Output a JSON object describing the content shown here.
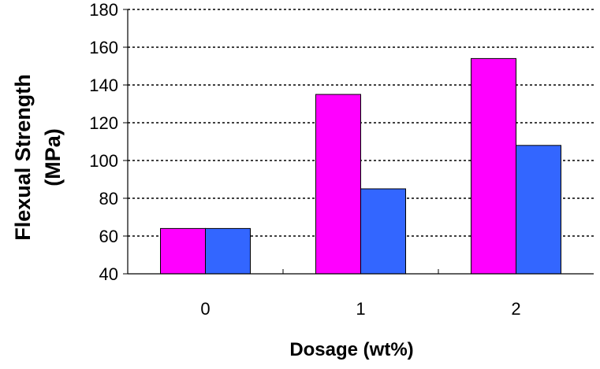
{
  "chart_data": {
    "type": "bar",
    "categories": [
      "0",
      "1",
      "2"
    ],
    "series": [
      {
        "color": "#ff00ff",
        "values": [
          64,
          135,
          154
        ]
      },
      {
        "color": "#3366ff",
        "values": [
          64,
          85,
          108
        ]
      }
    ],
    "title": "",
    "xlabel": "Dosage (wt%)",
    "ylabel_line1": "Flexual Strength",
    "ylabel_line2": "(MPa)",
    "ylim": [
      40,
      180
    ],
    "yticks": [
      "40",
      "60",
      "80",
      "100",
      "120",
      "140",
      "160",
      "180"
    ],
    "grid": "horizontal dashed",
    "legend": "none"
  }
}
